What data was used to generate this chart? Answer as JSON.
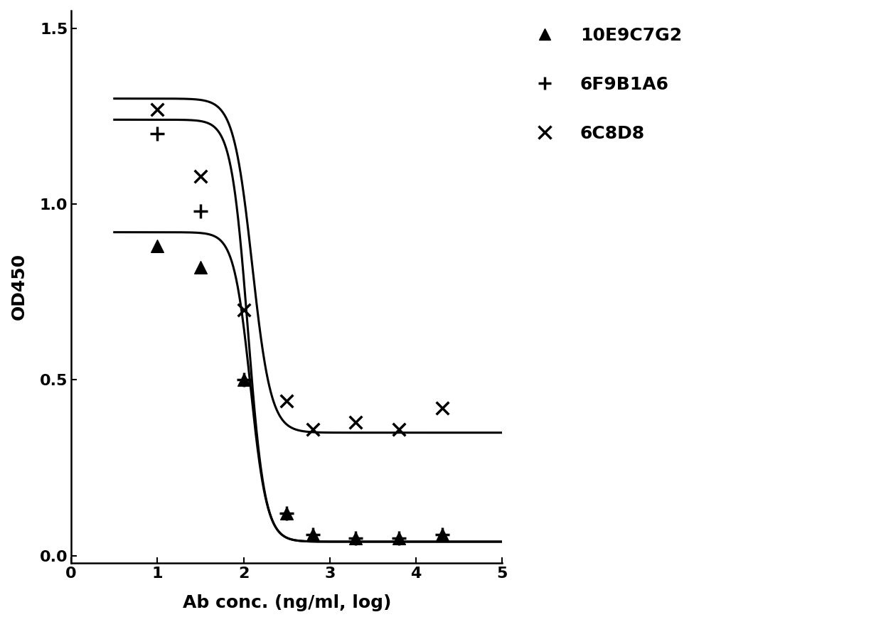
{
  "title": "",
  "xlabel": "Ab conc. (ng/ml, log)",
  "ylabel": "OD450",
  "xlim": [
    0,
    5
  ],
  "ylim": [
    -0.02,
    1.55
  ],
  "xticks": [
    0,
    1,
    2,
    3,
    4,
    5
  ],
  "yticks": [
    0.0,
    0.5,
    1.0,
    1.5
  ],
  "series": [
    {
      "name": "10E9C7G2",
      "marker": "^",
      "x": [
        1.0,
        1.5,
        2.0,
        2.5,
        2.8,
        3.3,
        3.8,
        4.3
      ],
      "y": [
        0.88,
        0.82,
        0.5,
        0.12,
        0.06,
        0.05,
        0.05,
        0.06
      ],
      "curve_bottom": 0.04,
      "curve_top": 0.92,
      "ec50": 2.08,
      "hill": 4.5
    },
    {
      "name": "6F9B1A6",
      "marker": "+",
      "x": [
        1.0,
        1.5,
        2.0,
        2.5,
        2.8,
        3.3,
        3.8,
        4.3
      ],
      "y": [
        1.2,
        0.98,
        0.5,
        0.12,
        0.06,
        0.05,
        0.05,
        0.06
      ],
      "curve_bottom": 0.04,
      "curve_top": 1.24,
      "ec50": 2.05,
      "hill": 4.5
    },
    {
      "name": "6C8D8",
      "marker": "x",
      "x": [
        1.0,
        1.5,
        2.0,
        2.5,
        2.8,
        3.3,
        3.8,
        4.3
      ],
      "y": [
        1.27,
        1.08,
        0.7,
        0.44,
        0.36,
        0.38,
        0.36,
        0.42
      ],
      "curve_bottom": 0.35,
      "curve_top": 1.3,
      "ec50": 2.1,
      "hill": 4.0
    }
  ],
  "line_color": "#000000",
  "marker_color": "#000000",
  "background_color": "#ffffff",
  "legend_fontsize": 18,
  "axis_fontsize": 18,
  "tick_fontsize": 16,
  "marker_size": 9,
  "line_width": 2.2
}
